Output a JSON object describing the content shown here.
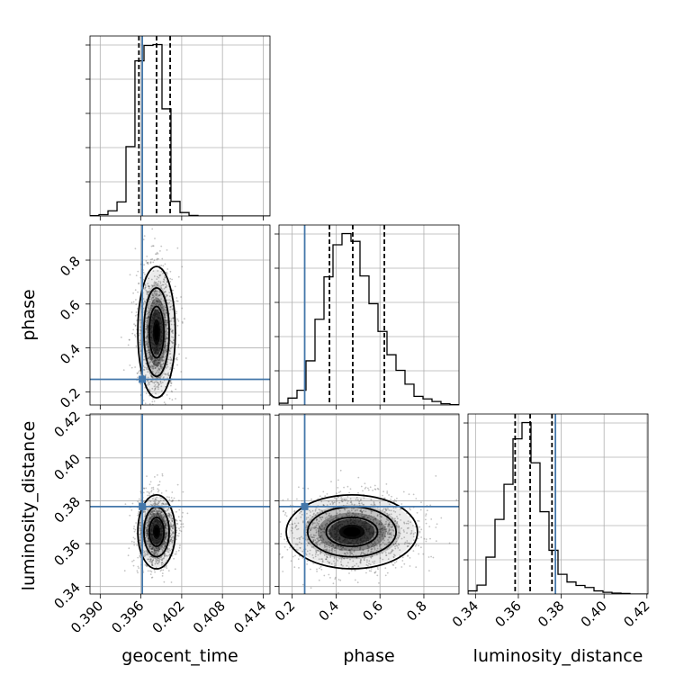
{
  "chart_data": {
    "type": "corner",
    "parameters": [
      "geocent_time",
      "phase",
      "luminosity_distance"
    ],
    "axis_labels": {
      "geocent_time": "geocent_time",
      "phase": "phase",
      "luminosity_distance": "luminosity_distance"
    },
    "ranges": {
      "geocent_time": [
        0.3885,
        0.415
      ],
      "phase": [
        0.14,
        0.96
      ],
      "luminosity_distance": [
        0.3365,
        0.4205
      ]
    },
    "ticks": {
      "geocent_time": [
        0.39,
        0.396,
        0.402,
        0.408,
        0.414
      ],
      "phase": [
        0.2,
        0.4,
        0.6,
        0.8
      ],
      "luminosity_distance": [
        0.34,
        0.36,
        0.38,
        0.4,
        0.42
      ]
    },
    "tick_labels": {
      "geocent_time": [
        "0.390",
        "0.396",
        "0.402",
        "0.408",
        "0.414"
      ],
      "phase": [
        "0.2",
        "0.4",
        "0.6",
        "0.8"
      ],
      "luminosity_distance": [
        "0.34",
        "0.36",
        "0.38",
        "0.40",
        "0.42"
      ]
    },
    "truths": {
      "geocent_time": 0.3962,
      "phase": 0.257,
      "luminosity_distance": 0.3773
    },
    "quantiles": {
      "geocent_time": [
        0.3957,
        0.3983,
        0.4003
      ],
      "phase": [
        0.37,
        0.476,
        0.62
      ],
      "luminosity_distance": [
        0.3585,
        0.3655,
        0.3757
      ]
    },
    "histograms": {
      "geocent_time": {
        "edges": [
          0.3885,
          0.38982,
          0.39115,
          0.39248,
          0.3938,
          0.39512,
          0.39645,
          0.39778,
          0.3991,
          0.40042,
          0.40175,
          0.40308,
          0.4044,
          0.40572,
          0.40705,
          0.40838,
          0.4097,
          0.41102,
          0.41235,
          0.41368,
          0.415
        ],
        "counts": [
          2,
          8,
          30,
          82,
          405,
          905,
          995,
          1000,
          625,
          85,
          20,
          3,
          0,
          0,
          0,
          0,
          0,
          0,
          0,
          0
        ]
      },
      "phase": {
        "edges": [
          0.14,
          0.181,
          0.222,
          0.263,
          0.304,
          0.345,
          0.386,
          0.427,
          0.468,
          0.509,
          0.55,
          0.591,
          0.632,
          0.673,
          0.714,
          0.755,
          0.796,
          0.837,
          0.878,
          0.919,
          0.96
        ],
        "counts": [
          10,
          40,
          85,
          255,
          495,
          740,
          925,
          990,
          945,
          745,
          585,
          425,
          290,
          200,
          120,
          50,
          35,
          20,
          7,
          2
        ]
      },
      "luminosity_distance": {
        "edges": [
          0.3365,
          0.3407,
          0.3449,
          0.3491,
          0.3533,
          0.3575,
          0.3617,
          0.3659,
          0.3701,
          0.3743,
          0.3785,
          0.3827,
          0.3869,
          0.3911,
          0.3953,
          0.3995,
          0.4037,
          0.4079,
          0.4121,
          0.4163,
          0.4205
        ],
        "counts": [
          18,
          52,
          215,
          435,
          640,
          905,
          1000,
          765,
          480,
          255,
          115,
          70,
          50,
          38,
          18,
          10,
          5,
          3,
          0,
          0
        ]
      }
    },
    "posterior_2d": {
      "phase_vs_geocent_time": {
        "mean": [
          0.3983,
          0.472
        ],
        "std": [
          0.0012,
          0.13
        ]
      },
      "luminosity_distance_vs_geocent_time": {
        "mean": [
          0.3983,
          0.3655
        ],
        "std": [
          0.0012,
          0.0075
        ]
      },
      "luminosity_distance_vs_phase": {
        "mean": [
          0.472,
          0.3655
        ],
        "std": [
          0.13,
          0.0075
        ]
      }
    },
    "colors": {
      "truth": "#4477aa",
      "hist": "#000000",
      "quantile": "#000000",
      "grid": "#b0b0b0",
      "points": "#555555",
      "density": "#000000"
    },
    "grid": true
  }
}
